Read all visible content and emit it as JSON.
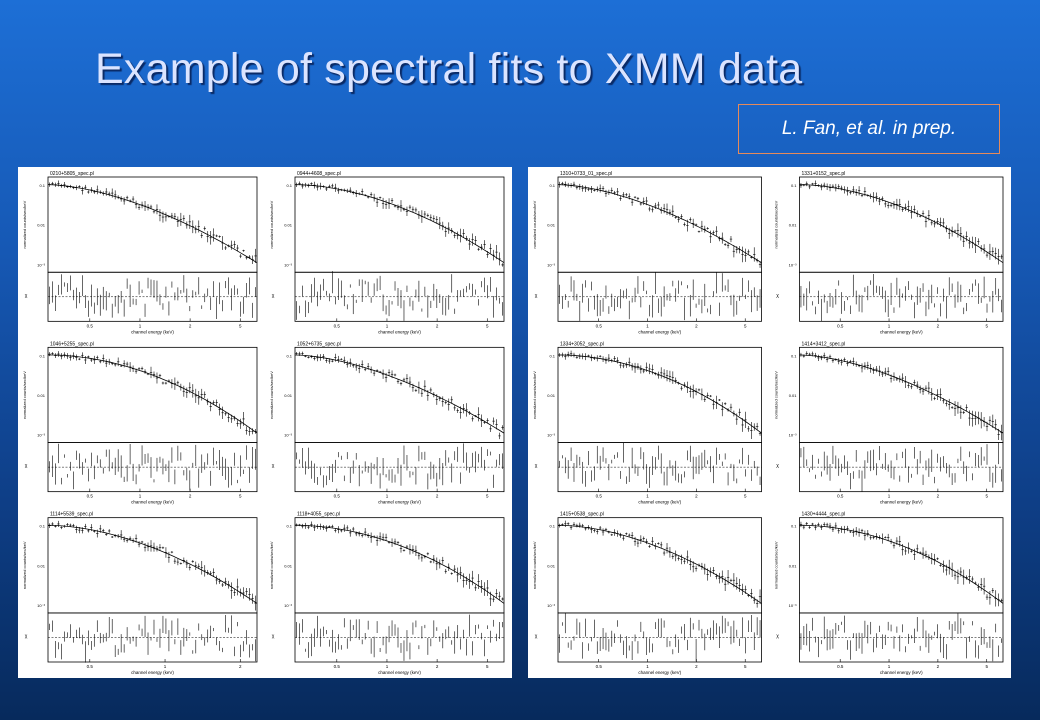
{
  "slide": {
    "title": "Example of spectral fits to XMM data",
    "citation": "L. Fan, et al. in prep."
  },
  "axis_text": {
    "xlabel": "channel energy (keV)",
    "ylabel": "normalized counts/sec/keV",
    "resid_label": "χ"
  },
  "figures": [
    {
      "panels": [
        {
          "label": "0210+5805_spec.pl",
          "ticks": [
            "0.5",
            "1",
            "2",
            "5"
          ]
        },
        {
          "label": "0944+4608_spec.pl",
          "ticks": [
            "0.5",
            "1",
            "2",
            "5"
          ]
        },
        {
          "label": "1046+5255_spec.pl",
          "ticks": [
            "0.5",
            "1",
            "2",
            "5"
          ]
        },
        {
          "label": "1052+6735_spec.pl",
          "ticks": [
            "0.5",
            "1",
            "2",
            "5"
          ]
        },
        {
          "label": "1114+5539_spec.pl",
          "ticks": [
            "0.5",
            "1",
            "2"
          ]
        },
        {
          "label": "1118+4055_spec.pl",
          "ticks": [
            "0.5",
            "1",
            "2",
            "5"
          ]
        }
      ]
    },
    {
      "panels": [
        {
          "label": "1310+0733_01_spec.pl",
          "ticks": [
            "0.5",
            "1",
            "2",
            "5"
          ]
        },
        {
          "label": "1331+0152_spec.pl",
          "ticks": [
            "0.5",
            "1",
            "2",
            "5"
          ]
        },
        {
          "label": "1334+3052_spec.pl",
          "ticks": [
            "0.5",
            "1",
            "2",
            "5"
          ]
        },
        {
          "label": "1414+3412_spec.pl",
          "ticks": [
            "0.5",
            "1",
            "2",
            "5"
          ]
        },
        {
          "label": "1415+0538_spec.pl",
          "ticks": [
            "0.5",
            "1",
            "2",
            "5"
          ]
        },
        {
          "label": "1430+4444_spec.pl",
          "ticks": [
            "0.5",
            "1",
            "2",
            "5"
          ]
        }
      ]
    }
  ]
}
